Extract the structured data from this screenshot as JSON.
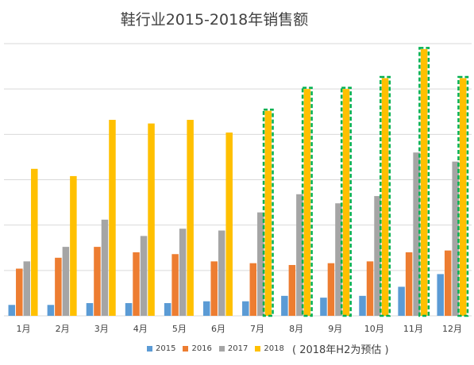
{
  "chart_data": {
    "type": "bar",
    "title": "鞋行业2015-2018年销售额",
    "categories": [
      "1月",
      "2月",
      "3月",
      "4月",
      "5月",
      "6月",
      "7月",
      "8月",
      "9月",
      "10月",
      "11月",
      "12月"
    ],
    "series": [
      {
        "name": "2015",
        "color": "#5b9bd5",
        "values": [
          6,
          6,
          7,
          7,
          7,
          8,
          8,
          11,
          10,
          11,
          16,
          23
        ]
      },
      {
        "name": "2016",
        "color": "#ed7d31",
        "values": [
          26,
          32,
          38,
          35,
          34,
          30,
          29,
          28,
          29,
          30,
          35,
          36
        ]
      },
      {
        "name": "2017",
        "color": "#a5a5a5",
        "values": [
          30,
          38,
          53,
          44,
          48,
          47,
          57,
          67,
          62,
          66,
          90,
          85
        ]
      },
      {
        "name": "2018",
        "color": "#ffc000",
        "values": [
          81,
          77,
          108,
          106,
          108,
          101,
          113,
          125,
          125,
          131,
          147,
          131
        ]
      }
    ],
    "highlight": {
      "series": "2018",
      "categories": [
        "7月",
        "8月",
        "9月",
        "10月",
        "11月",
        "12月"
      ],
      "color": "#00b050",
      "style": "dashed"
    },
    "ylim": [
      0,
      150
    ],
    "grid": true,
    "y_tick_labels_shown": false,
    "legend_position": "bottom",
    "annotation": "( 2018年H2为预估 )"
  }
}
